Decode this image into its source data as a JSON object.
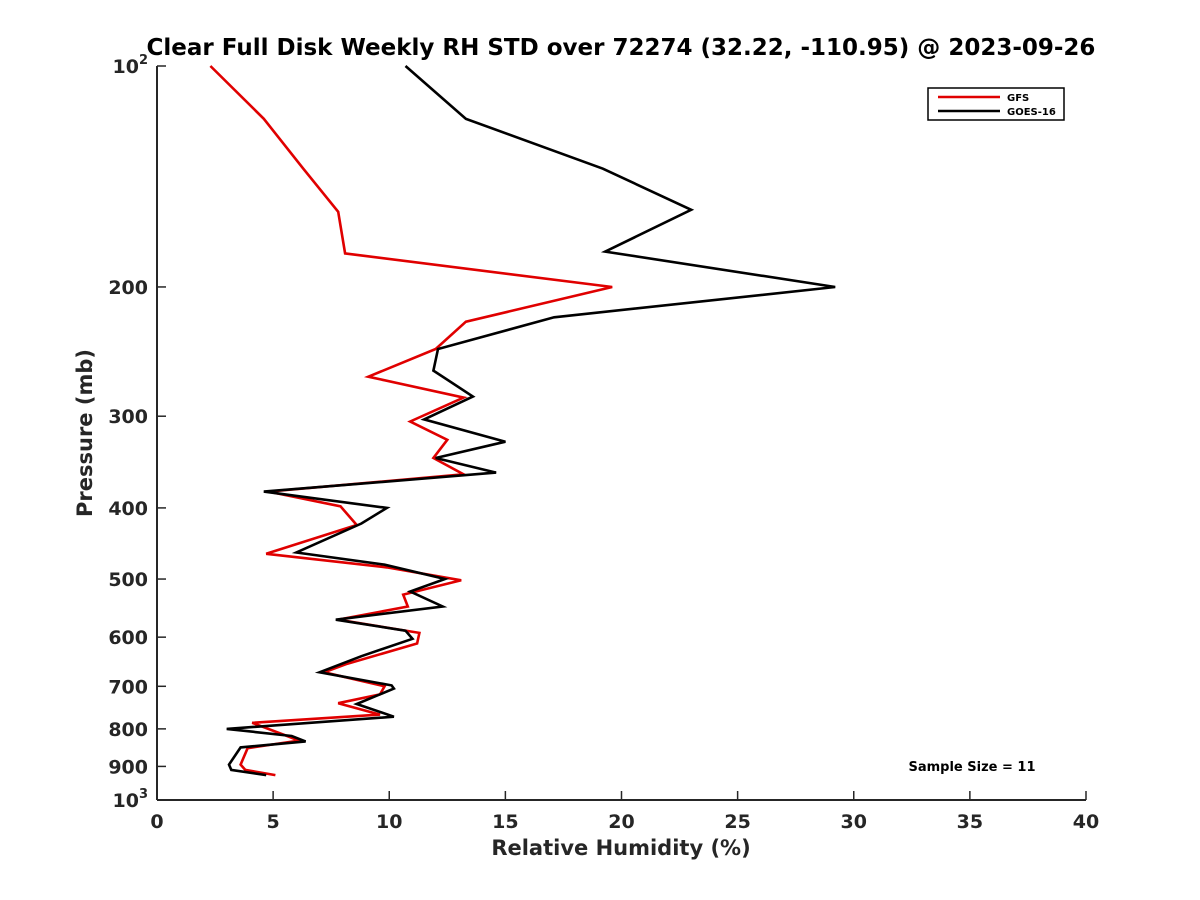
{
  "chart_data": {
    "type": "line",
    "title": "Clear Full Disk Weekly RH STD over 72274 (32.22, -110.95) @ 2023-09-26",
    "xlabel": "Relative Humidity (%)",
    "ylabel": "Pressure (mb)",
    "xlim": [
      0,
      40
    ],
    "ylim": [
      100,
      1000
    ],
    "y_scale": "log",
    "y_reversed": true,
    "x_ticks": [
      "0",
      "5",
      "10",
      "15",
      "20",
      "25",
      "30",
      "35",
      "40"
    ],
    "y_ticks": [
      {
        "value": 100,
        "base": "10",
        "exp": "2"
      },
      {
        "value": 200,
        "label": "200"
      },
      {
        "value": 300,
        "label": "300"
      },
      {
        "value": 400,
        "label": "400"
      },
      {
        "value": 500,
        "label": "500"
      },
      {
        "value": 600,
        "label": "600"
      },
      {
        "value": 700,
        "label": "700"
      },
      {
        "value": 800,
        "label": "800"
      },
      {
        "value": 900,
        "label": "900"
      },
      {
        "value": 1000,
        "base": "10",
        "exp": "3"
      }
    ],
    "grid": false,
    "legend_position": "top-right",
    "annotation": "Sample Size = 11",
    "series": [
      {
        "name": "GFS",
        "color": "#e00000",
        "points": [
          [
            2.3,
            100
          ],
          [
            4.6,
            118
          ],
          [
            6.3,
            138
          ],
          [
            7.8,
            158
          ],
          [
            8.1,
            180
          ],
          [
            19.6,
            200
          ],
          [
            13.3,
            223
          ],
          [
            12.0,
            243
          ],
          [
            9.1,
            265
          ],
          [
            13.2,
            283
          ],
          [
            10.9,
            305
          ],
          [
            12.5,
            323
          ],
          [
            11.9,
            342
          ],
          [
            13.2,
            360
          ],
          [
            4.8,
            380
          ],
          [
            7.9,
            398
          ],
          [
            8.6,
            422
          ],
          [
            4.7,
            462
          ],
          [
            9.9,
            482
          ],
          [
            13.1,
            502
          ],
          [
            10.6,
            525
          ],
          [
            10.8,
            545
          ],
          [
            7.8,
            568
          ],
          [
            11.3,
            592
          ],
          [
            11.2,
            612
          ],
          [
            8.2,
            652
          ],
          [
            7.2,
            670
          ],
          [
            9.8,
            700
          ],
          [
            9.6,
            718
          ],
          [
            7.8,
            738
          ],
          [
            9.6,
            765
          ],
          [
            4.1,
            785
          ],
          [
            5.6,
            818
          ],
          [
            6.1,
            830
          ],
          [
            3.9,
            850
          ],
          [
            3.6,
            895
          ],
          [
            3.8,
            910
          ],
          [
            5.1,
            925
          ]
        ]
      },
      {
        "name": "GOES-16",
        "color": "#000000",
        "points": [
          [
            10.7,
            100
          ],
          [
            13.3,
            118
          ],
          [
            19.2,
            138
          ],
          [
            23.0,
            157
          ],
          [
            19.3,
            179
          ],
          [
            29.2,
            200
          ],
          [
            17.1,
            220
          ],
          [
            12.1,
            243
          ],
          [
            11.9,
            260
          ],
          [
            13.6,
            282
          ],
          [
            11.5,
            303
          ],
          [
            15.0,
            325
          ],
          [
            12.0,
            342
          ],
          [
            14.6,
            358
          ],
          [
            4.6,
            380
          ],
          [
            9.9,
            400
          ],
          [
            8.8,
            420
          ],
          [
            6.0,
            460
          ],
          [
            9.8,
            478
          ],
          [
            12.4,
            500
          ],
          [
            10.9,
            520
          ],
          [
            12.3,
            545
          ],
          [
            7.7,
            568
          ],
          [
            10.7,
            588
          ],
          [
            11.0,
            603
          ],
          [
            8.8,
            637
          ],
          [
            7.0,
            670
          ],
          [
            10.1,
            698
          ],
          [
            10.2,
            705
          ],
          [
            8.6,
            740
          ],
          [
            10.2,
            770
          ],
          [
            3.0,
            800
          ],
          [
            5.8,
            818
          ],
          [
            6.4,
            832
          ],
          [
            3.6,
            848
          ],
          [
            3.1,
            895
          ],
          [
            3.2,
            910
          ],
          [
            4.7,
            925
          ]
        ]
      }
    ]
  }
}
